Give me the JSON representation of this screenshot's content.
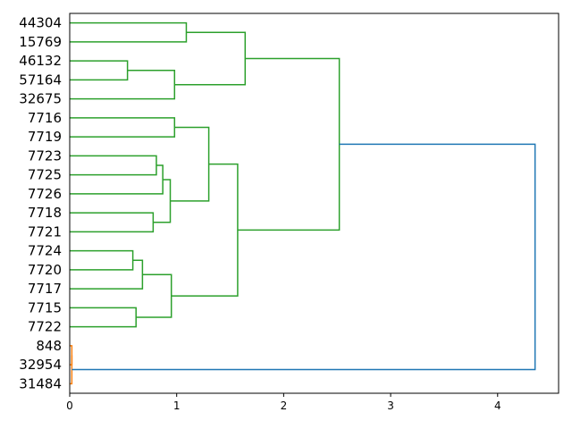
{
  "chart_data": {
    "type": "dendrogram",
    "orientation": "horizontal",
    "xlim": [
      0,
      4.57
    ],
    "x_ticks": [
      0,
      1,
      2,
      3,
      4
    ],
    "leaves": [
      "44304",
      "15769",
      "46132",
      "57164",
      "32675",
      "7716",
      "7719",
      "7723",
      "7725",
      "7726",
      "7718",
      "7721",
      "7724",
      "7720",
      "7717",
      "7715",
      "7722",
      "848",
      "32954",
      "31484"
    ],
    "colors": {
      "green_cluster": "#2ca02c",
      "orange_cluster": "#ff7f0e",
      "root": "#1f77b4"
    },
    "merges": [
      {
        "id": "A",
        "children": [
          "44304",
          "15769"
        ],
        "height": 1.09,
        "color": "green_cluster"
      },
      {
        "id": "B",
        "children": [
          "46132",
          "57164"
        ],
        "height": 0.54,
        "color": "green_cluster"
      },
      {
        "id": "C",
        "children": [
          "B",
          "32675"
        ],
        "height": 0.98,
        "color": "green_cluster"
      },
      {
        "id": "D",
        "children": [
          "A",
          "C"
        ],
        "height": 1.64,
        "color": "green_cluster"
      },
      {
        "id": "E",
        "children": [
          "7716",
          "7719"
        ],
        "height": 0.98,
        "color": "green_cluster"
      },
      {
        "id": "F",
        "children": [
          "7723",
          "7725"
        ],
        "height": 0.81,
        "color": "green_cluster"
      },
      {
        "id": "G",
        "children": [
          "F",
          "7726"
        ],
        "height": 0.87,
        "color": "green_cluster"
      },
      {
        "id": "H",
        "children": [
          "7718",
          "7721"
        ],
        "height": 0.78,
        "color": "green_cluster"
      },
      {
        "id": "I",
        "children": [
          "G",
          "H"
        ],
        "height": 0.94,
        "color": "green_cluster"
      },
      {
        "id": "J",
        "children": [
          "E",
          "I"
        ],
        "height": 1.3,
        "color": "green_cluster"
      },
      {
        "id": "K",
        "children": [
          "7724",
          "7720"
        ],
        "height": 0.59,
        "color": "green_cluster"
      },
      {
        "id": "L",
        "children": [
          "K",
          "7717"
        ],
        "height": 0.68,
        "color": "green_cluster"
      },
      {
        "id": "M",
        "children": [
          "7715",
          "7722"
        ],
        "height": 0.62,
        "color": "green_cluster"
      },
      {
        "id": "N",
        "children": [
          "L",
          "M"
        ],
        "height": 0.95,
        "color": "green_cluster"
      },
      {
        "id": "O",
        "children": [
          "J",
          "N"
        ],
        "height": 1.57,
        "color": "green_cluster"
      },
      {
        "id": "P",
        "children": [
          "D",
          "O"
        ],
        "height": 2.52,
        "color": "green_cluster"
      },
      {
        "id": "Q",
        "children": [
          "848",
          "32954"
        ],
        "height": 0.02,
        "color": "orange_cluster"
      },
      {
        "id": "R",
        "children": [
          "Q",
          "31484"
        ],
        "height": 0.02,
        "color": "orange_cluster"
      },
      {
        "id": "S",
        "children": [
          "P",
          "R"
        ],
        "height": 4.35,
        "color": "root"
      }
    ]
  }
}
